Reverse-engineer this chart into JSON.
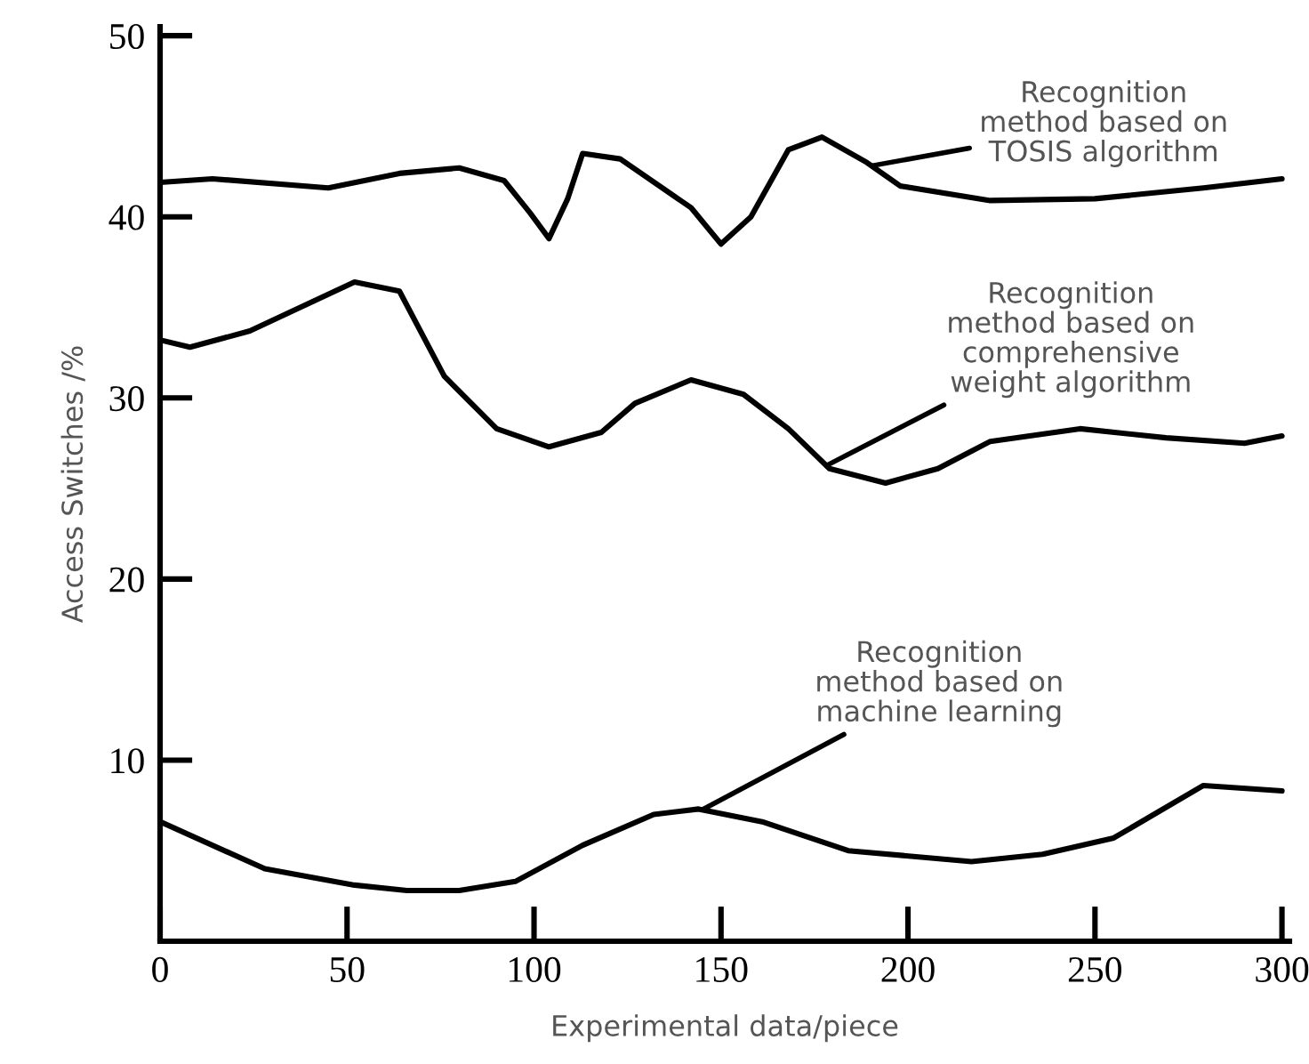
{
  "chart_data": {
    "type": "line",
    "xlabel": "Experimental data/piece",
    "ylabel": "Access Switches /%",
    "xlim": [
      0,
      302
    ],
    "ylim": [
      0,
      50.5
    ],
    "xticks": [
      0,
      50,
      100,
      150,
      200,
      250,
      300
    ],
    "yticks": [
      10,
      20,
      30,
      40,
      50
    ],
    "grid": false,
    "legend": false,
    "marker": "none",
    "line_style": "solid",
    "series": [
      {
        "name": "Recognition\nmethod based on\nTOSIS algorithm",
        "color": "#000000",
        "x": [
          0,
          14,
          45,
          64,
          80,
          92,
          99,
          104,
          109,
          113,
          123,
          142,
          150,
          158,
          168,
          177,
          189,
          198,
          222,
          250,
          279,
          300
        ],
        "values": [
          41.9,
          42.1,
          41.6,
          42.4,
          42.7,
          42.0,
          40.2,
          38.8,
          41.0,
          43.5,
          43.2,
          40.5,
          38.5,
          40.0,
          43.7,
          44.4,
          43.0,
          41.7,
          40.9,
          41.0,
          41.6,
          42.1
        ]
      },
      {
        "name": "Recognition\nmethod based on\ncomprehensive\nweight algorithm",
        "color": "#000000",
        "x": [
          0,
          8,
          24,
          52,
          64,
          76,
          90,
          104,
          118,
          127,
          142,
          156,
          168,
          179,
          194,
          208,
          222,
          246,
          269,
          290,
          300
        ],
        "values": [
          33.2,
          32.8,
          33.7,
          36.4,
          35.9,
          31.2,
          28.3,
          27.3,
          28.1,
          29.7,
          31.0,
          30.2,
          28.3,
          26.1,
          25.3,
          26.1,
          27.6,
          28.3,
          27.8,
          27.5,
          27.9
        ]
      },
      {
        "name": "Recognition\nmethod based on\nmachine learning",
        "color": "#000000",
        "x": [
          0,
          28,
          52,
          66,
          80,
          95,
          113,
          132,
          144,
          161,
          184,
          217,
          236,
          255,
          279,
          300
        ],
        "values": [
          6.6,
          4.0,
          3.1,
          2.8,
          2.8,
          3.3,
          5.3,
          7.0,
          7.3,
          6.6,
          5.0,
          4.4,
          4.8,
          5.7,
          8.6,
          8.3
        ]
      }
    ]
  }
}
